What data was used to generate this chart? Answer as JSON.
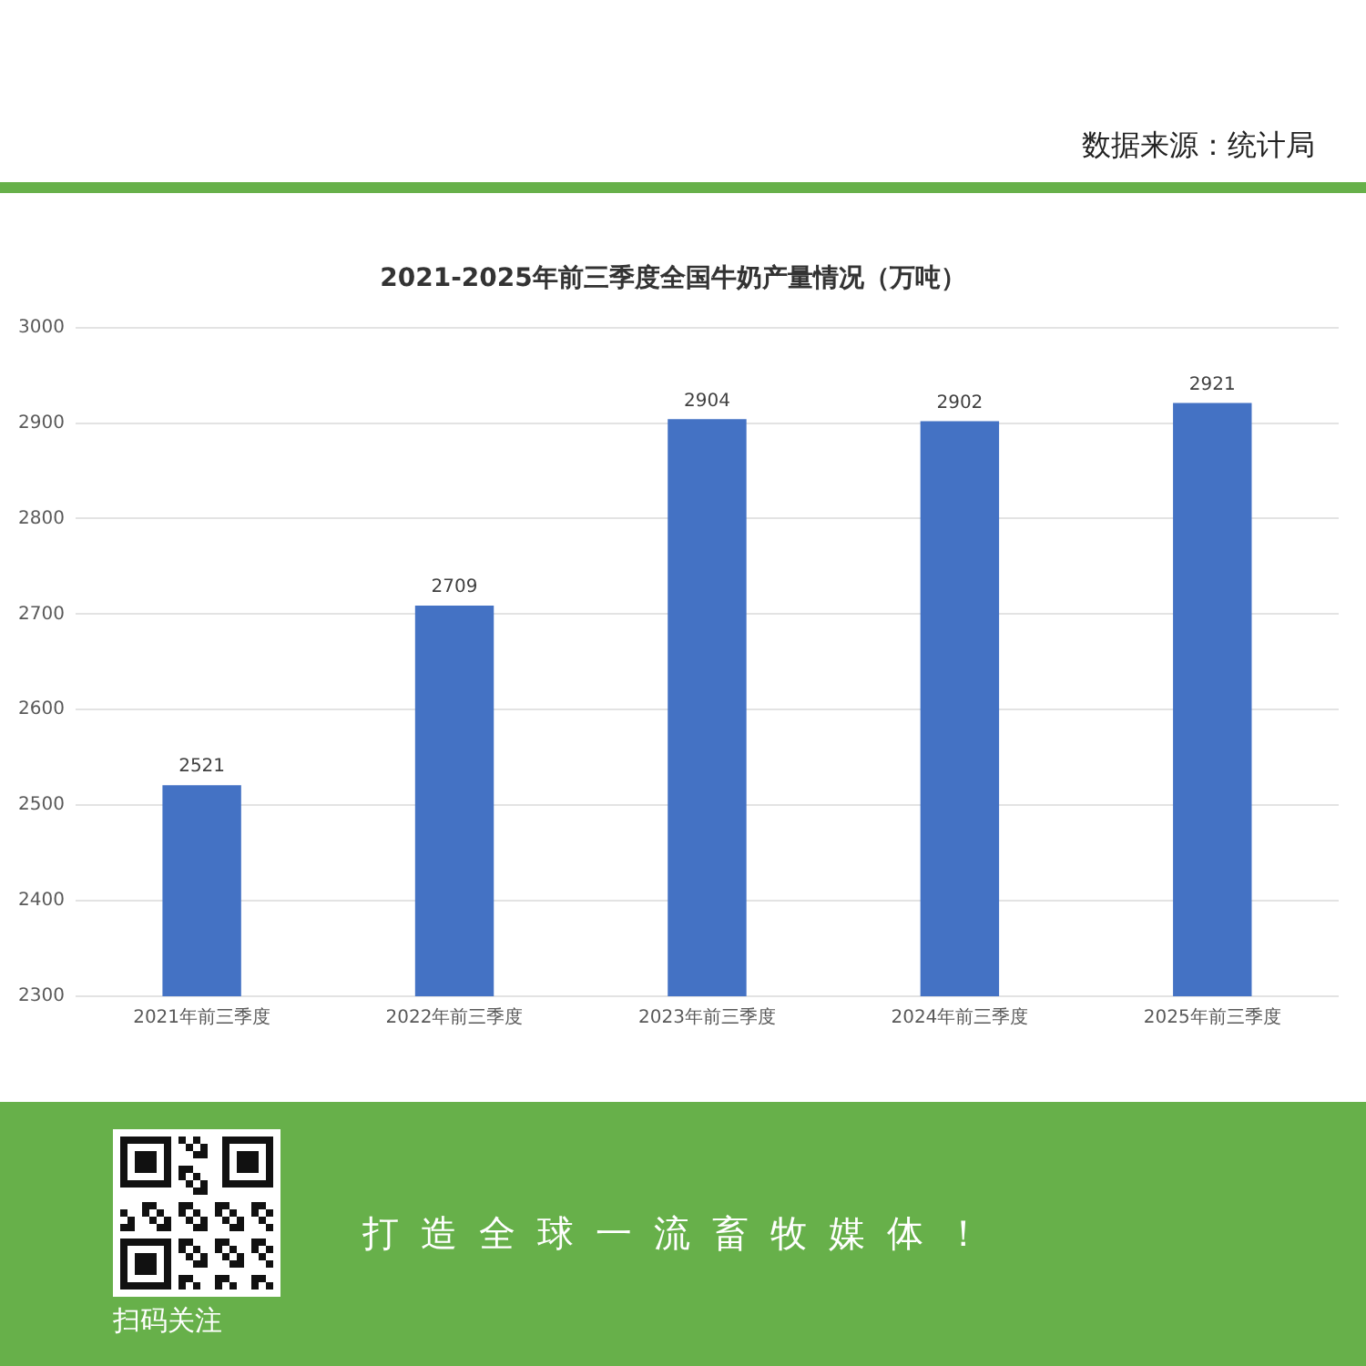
{
  "chart_data": {
    "type": "bar",
    "title": "2021-2025年前三季度全国牛奶产量情况（万吨）",
    "categories": [
      "2021年前三季度",
      "2022年前三季度",
      "2023年前三季度",
      "2024年前三季度",
      "2025年前三季度"
    ],
    "values": [
      2521,
      2709,
      2904,
      2902,
      2921
    ],
    "color": "#4472c4",
    "ylim": [
      2300,
      3000
    ],
    "yticks": [
      2300,
      2400,
      2500,
      2600,
      2700,
      2800,
      2900,
      3000
    ],
    "grid": "y",
    "data_labels": true,
    "annotations": [
      "数据来源：统计局",
      "打造全球一流畜牧媒体！",
      "扫码关注"
    ]
  }
}
